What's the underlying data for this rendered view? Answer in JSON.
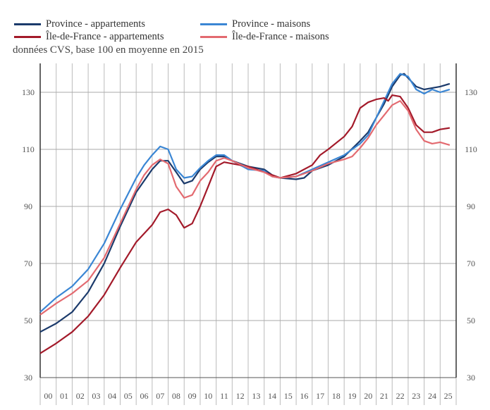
{
  "chart_data": {
    "type": "line",
    "subtitle": "données CVS, base 100 en moyenne en 2015",
    "ylim": [
      30,
      140
    ],
    "yticks": [
      30,
      50,
      70,
      90,
      110,
      130
    ],
    "xlim": [
      2000,
      2026
    ],
    "xtick_labels": [
      "00",
      "01",
      "02",
      "03",
      "04",
      "05",
      "06",
      "07",
      "08",
      "09",
      "10",
      "11",
      "12",
      "13",
      "14",
      "15",
      "16",
      "17",
      "18",
      "19",
      "20",
      "21",
      "22",
      "23",
      "24",
      "25"
    ],
    "grid": true,
    "legend_placement": "top",
    "series": [
      {
        "name": "Province - appartements",
        "color": "#1b3a6b",
        "x": [
          2000,
          2001,
          2002,
          2003,
          2004,
          2005,
          2006,
          2007,
          2007.5,
          2008,
          2008.5,
          2009,
          2009.5,
          2010,
          2010.5,
          2011,
          2011.5,
          2012,
          2013,
          2014,
          2014.5,
          2015,
          2016,
          2016.5,
          2017,
          2018,
          2019,
          2020,
          2020.5,
          2021,
          2021.5,
          2022,
          2022.5,
          2022.75,
          2023,
          2023.5,
          2024,
          2024.5,
          2025,
          2025.6
        ],
        "y": [
          46,
          49,
          53,
          60,
          70,
          83,
          95,
          103,
          106,
          106,
          102,
          98,
          99,
          103,
          105.5,
          107.5,
          107.5,
          106,
          104,
          103,
          101,
          100,
          99.5,
          100,
          102.5,
          104.5,
          107.5,
          113,
          116,
          121,
          126,
          132,
          136,
          136.5,
          135,
          132,
          131,
          131.5,
          132,
          133
        ]
      },
      {
        "name": "Province - maisons",
        "color": "#3a86d4",
        "x": [
          2000,
          2001,
          2002,
          2003,
          2004,
          2005,
          2006,
          2006.5,
          2007,
          2007.5,
          2008,
          2008.5,
          2009,
          2009.5,
          2010,
          2010.5,
          2011,
          2011.5,
          2012,
          2013,
          2014,
          2014.5,
          2015,
          2016,
          2017,
          2018,
          2019,
          2020,
          2020.5,
          2021,
          2021.5,
          2022,
          2022.5,
          2023,
          2023.5,
          2024,
          2024.5,
          2025,
          2025.6
        ],
        "y": [
          53,
          58,
          62,
          68,
          77,
          89,
          100,
          104.5,
          108,
          111,
          110,
          103,
          100,
          100.5,
          103.5,
          106,
          108,
          108,
          106,
          103,
          102.5,
          100.5,
          100,
          100.5,
          103,
          105.5,
          108,
          112,
          115,
          121,
          127,
          133,
          136.5,
          135.5,
          131,
          129.5,
          131,
          130,
          131
        ]
      },
      {
        "name": "Île-de-France - appartements",
        "color": "#a31a2a",
        "x": [
          2000,
          2001,
          2002,
          2003,
          2004,
          2005,
          2006,
          2007,
          2007.5,
          2008,
          2008.5,
          2009,
          2009.5,
          2010,
          2010.5,
          2011,
          2011.5,
          2012,
          2013,
          2014,
          2014.5,
          2015,
          2016,
          2017,
          2017.5,
          2018,
          2019,
          2019.5,
          2020,
          2020.5,
          2021,
          2021.5,
          2021.75,
          2022,
          2022.5,
          2023,
          2023.5,
          2024,
          2024.5,
          2025,
          2025.6
        ],
        "y": [
          38.5,
          42,
          46,
          51.5,
          59,
          68.5,
          77.5,
          83.5,
          88,
          89,
          87,
          82.5,
          84,
          90,
          97,
          104,
          105.5,
          105,
          104,
          102,
          101,
          100,
          101.5,
          104.5,
          108,
          110,
          114.5,
          118,
          124.5,
          126.5,
          127.5,
          128,
          127,
          129,
          128.5,
          124.5,
          118.5,
          116,
          116,
          117,
          117.5
        ]
      },
      {
        "name": "Île-de-France - maisons",
        "color": "#e36a70",
        "x": [
          2000,
          2001,
          2002,
          2003,
          2004,
          2005,
          2006,
          2006.5,
          2007,
          2007.5,
          2008,
          2008.5,
          2009,
          2009.5,
          2010,
          2010.5,
          2011,
          2011.5,
          2012,
          2013,
          2014,
          2014.5,
          2015,
          2016,
          2017,
          2018,
          2019,
          2019.5,
          2020,
          2020.5,
          2021,
          2021.5,
          2022,
          2022.5,
          2023,
          2023.5,
          2024,
          2024.5,
          2025,
          2025.6
        ],
        "y": [
          52,
          56,
          59.5,
          64,
          72,
          84,
          96,
          101,
          104.5,
          106.5,
          105,
          97,
          93,
          94,
          99,
          102,
          106,
          107,
          106,
          103.5,
          102,
          100.5,
          100,
          100.5,
          102.5,
          105,
          106.5,
          107.5,
          110.5,
          114,
          118.5,
          122,
          125.5,
          127,
          123.5,
          117,
          113,
          112,
          112.5,
          111.5
        ]
      }
    ]
  }
}
